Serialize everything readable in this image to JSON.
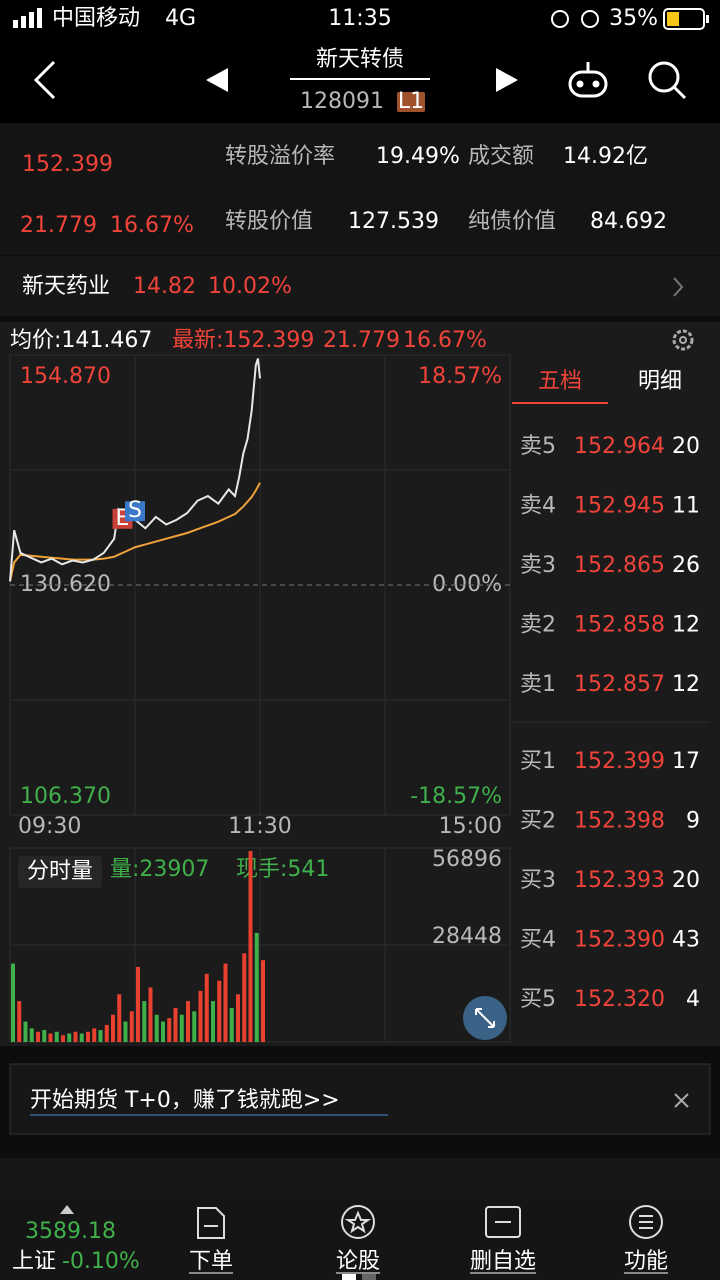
{
  "status_bar": {
    "carrier": "中国移动",
    "network": "4G",
    "time": "11:35",
    "battery": "35%"
  },
  "header": {
    "title": "新天转债",
    "code": "128091",
    "badge": "L1"
  },
  "quote": {
    "price": "152.399",
    "change": "21.779",
    "change_pct": "16.67%",
    "metrics": [
      {
        "label": "转股溢价率",
        "value": "19.49%"
      },
      {
        "label": "成交额",
        "value": "14.92亿"
      },
      {
        "label": "转股价值",
        "value": "127.539"
      },
      {
        "label": "纯债价值",
        "value": "84.692"
      }
    ]
  },
  "underlying": {
    "name": "新天药业",
    "price": "14.82",
    "change_pct": "10.02%"
  },
  "chart_data": [
    {
      "type": "line",
      "avg_label": "均价:141.467",
      "latest_label": "最新:152.399",
      "latest_change": "21.779",
      "latest_pct": "16.67%",
      "x": [
        0,
        2,
        5,
        10,
        15,
        20,
        25,
        30,
        35,
        40,
        45,
        50,
        52,
        55,
        58,
        60,
        65,
        70,
        75,
        80,
        85,
        90,
        95,
        100,
        105,
        108,
        110,
        112,
        114,
        116,
        118,
        119,
        120
      ],
      "series": [
        {
          "color": "#e8e8e8",
          "values": [
            131.0,
            136.4,
            134.0,
            133.5,
            133.0,
            133.4,
            132.8,
            133.2,
            133.0,
            133.3,
            134.0,
            135.5,
            138.5,
            137.2,
            138.8,
            137.5,
            136.6,
            137.8,
            137.0,
            137.5,
            138.2,
            139.5,
            140.0,
            139.2,
            140.7,
            140.0,
            142.0,
            144.5,
            146.0,
            149.0,
            153.8,
            154.5,
            152.4
          ]
        },
        {
          "color": "#f0a23a",
          "values": [
            131.0,
            133.0,
            133.8,
            133.7,
            133.6,
            133.5,
            133.4,
            133.3,
            133.3,
            133.3,
            133.4,
            133.6,
            133.8,
            134.1,
            134.4,
            134.6,
            134.9,
            135.2,
            135.5,
            135.8,
            136.1,
            136.5,
            136.9,
            137.3,
            137.8,
            138.1,
            138.5,
            138.9,
            139.4,
            139.9,
            140.6,
            141.0,
            141.4
          ]
        }
      ],
      "markers": [
        {
          "label": "E",
          "x": 54,
          "y": 137.6,
          "color": "#c9423a"
        },
        {
          "label": "S",
          "x": 60,
          "y": 138.4,
          "color": "#3a78c9"
        }
      ],
      "xlim": [
        0,
        240
      ],
      "xticks": [
        {
          "value": 0,
          "label": "09:30"
        },
        {
          "value": 120,
          "label": "11:30"
        },
        {
          "value": 240,
          "label": "15:00"
        }
      ],
      "ylim": [
        106.37,
        154.87
      ],
      "yticks": [
        {
          "value": 154.87,
          "label": "154.870"
        },
        {
          "value": 130.62,
          "label": "130.620"
        },
        {
          "value": 106.37,
          "label": "106.370"
        }
      ],
      "y2lim": [
        -18.57,
        18.57
      ],
      "y2ticks": [
        {
          "value": 18.57,
          "label": "18.57%"
        },
        {
          "value": 0,
          "label": "0.00%"
        },
        {
          "value": -18.57,
          "label": "-18.57%"
        }
      ]
    },
    {
      "type": "bar",
      "title": "分时量",
      "volume_label": "量:23907",
      "hand_label": "现手:541",
      "x": [
        0,
        3,
        6,
        9,
        12,
        15,
        18,
        21,
        24,
        27,
        30,
        33,
        36,
        39,
        42,
        45,
        48,
        51,
        54,
        57,
        60,
        63,
        66,
        69,
        72,
        75,
        78,
        81,
        84,
        87,
        90,
        93,
        96,
        99,
        102,
        105,
        108,
        111,
        114,
        117,
        120
      ],
      "values": [
        23000,
        12000,
        6000,
        4000,
        3000,
        3500,
        2500,
        3000,
        2000,
        2500,
        3000,
        2500,
        3000,
        4000,
        3500,
        5000,
        8000,
        14000,
        6000,
        9000,
        22000,
        12000,
        16000,
        8000,
        6000,
        7000,
        10000,
        8000,
        12000,
        9000,
        15000,
        20000,
        12000,
        18000,
        23000,
        10000,
        14000,
        26000,
        56000,
        32000,
        24000
      ],
      "colors": [
        "#3fb04a",
        "#e8412f",
        "#3fb04a",
        "#3fb04a",
        "#e8412f",
        "#3fb04a",
        "#e8412f",
        "#3fb04a",
        "#e8412f",
        "#3fb04a",
        "#e8412f",
        "#3fb04a",
        "#e8412f",
        "#e8412f",
        "#3fb04a",
        "#e8412f",
        "#e8412f",
        "#e8412f",
        "#3fb04a",
        "#e8412f",
        "#e8412f",
        "#3fb04a",
        "#e8412f",
        "#3fb04a",
        "#3fb04a",
        "#e8412f",
        "#e8412f",
        "#3fb04a",
        "#e8412f",
        "#3fb04a",
        "#e8412f",
        "#e8412f",
        "#3fb04a",
        "#e8412f",
        "#e8412f",
        "#3fb04a",
        "#e8412f",
        "#e8412f",
        "#e8412f",
        "#3fb04a",
        "#e8412f"
      ],
      "ylim": [
        0,
        56896
      ],
      "yticks": [
        56896,
        28448
      ]
    }
  ],
  "order_book": {
    "tabs": [
      "五档",
      "明细"
    ],
    "asks": [
      [
        "卖5",
        "152.964",
        "20"
      ],
      [
        "卖4",
        "152.945",
        "11"
      ],
      [
        "卖3",
        "152.865",
        "26"
      ],
      [
        "卖2",
        "152.858",
        "12"
      ],
      [
        "卖1",
        "152.857",
        "12"
      ]
    ],
    "bids": [
      [
        "买1",
        "152.399",
        "17"
      ],
      [
        "买2",
        "152.398",
        "9"
      ],
      [
        "买3",
        "152.393",
        "20"
      ],
      [
        "买4",
        "152.390",
        "43"
      ],
      [
        "买5",
        "152.320",
        "4"
      ]
    ]
  },
  "banner": {
    "text": "开始期货 T+0，赚了钱就跑>>"
  },
  "bottom_bar": {
    "index_value": "3589.18",
    "index_name": "上证",
    "index_change": "-0.10%",
    "nav": [
      "下单",
      "论股",
      "删自选",
      "功能"
    ]
  }
}
